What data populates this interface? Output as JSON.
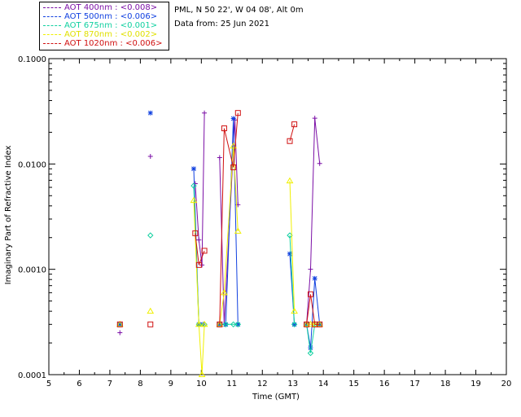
{
  "info": {
    "site": "PML, N 50 22', W 04 08', Alt 0m",
    "date": "Data from: 25 Jun 2021"
  },
  "legend": [
    {
      "label": "AOT  400nm : <0.008>",
      "color": "#7b0fa6"
    },
    {
      "label": "AOT  500nm : <0.006>",
      "color": "#1040e0"
    },
    {
      "label": "AOT  675nm : <0.001>",
      "color": "#10d0a0"
    },
    {
      "label": "AOT  870nm : <0.002>",
      "color": "#f0f000"
    },
    {
      "label": "AOT 1020nm : <0.006>",
      "color": "#d01010"
    }
  ],
  "chart_data": {
    "type": "line",
    "title": "",
    "xlabel": "Time (GMT)",
    "ylabel": "Imaginary Part of Refractive Index",
    "xlim": [
      5,
      20
    ],
    "ylim": [
      0.0001,
      0.1
    ],
    "yscale": "log",
    "x_ticks": [
      "5",
      "6",
      "7",
      "8",
      "9",
      "10",
      "11",
      "12",
      "13",
      "14",
      "15",
      "16",
      "17",
      "18",
      "19",
      "20"
    ],
    "y_ticks": [
      "0.0001",
      "0.0010",
      "0.0100",
      "0.1000"
    ],
    "grid": false,
    "series": [
      {
        "name": "AOT  400nm : <0.008>",
        "color": "#7b0fa6",
        "marker": "plus",
        "segments": [
          [
            [
              7.33,
              0.00025
            ]
          ],
          [
            [
              8.33,
              0.0118
            ]
          ],
          [
            [
              9.8,
              0.0065
            ],
            [
              9.92,
              0.0019
            ],
            [
              10.02,
              0.0011
            ],
            [
              10.1,
              0.0305
            ]
          ],
          [
            [
              10.6,
              0.0115
            ],
            [
              10.75,
              0.0003
            ],
            [
              11.1,
              0.0262
            ],
            [
              11.2,
              0.0041
            ]
          ],
          [
            [
              13.45,
              0.0003
            ],
            [
              13.58,
              0.001
            ],
            [
              13.72,
              0.0272
            ],
            [
              13.88,
              0.0101
            ]
          ]
        ]
      },
      {
        "name": "AOT  500nm : <0.006>",
        "color": "#1040e0",
        "marker": "asterisk",
        "segments": [
          [
            [
              7.33,
              0.0003
            ]
          ],
          [
            [
              8.33,
              0.0305
            ]
          ],
          [
            [
              9.75,
              0.009
            ],
            [
              9.92,
              0.0003
            ],
            [
              10.05,
              0.0003
            ]
          ],
          [
            [
              10.6,
              0.0003
            ],
            [
              10.8,
              0.0003
            ],
            [
              11.05,
              0.027
            ],
            [
              11.2,
              0.0003
            ]
          ],
          [
            [
              12.9,
              0.0014
            ],
            [
              13.05,
              0.0003
            ]
          ],
          [
            [
              13.45,
              0.0003
            ],
            [
              13.58,
              0.00018
            ],
            [
              13.72,
              0.00082
            ],
            [
              13.88,
              0.0003
            ]
          ]
        ]
      },
      {
        "name": "AOT  675nm : <0.001>",
        "color": "#10d0a0",
        "marker": "diamond",
        "segments": [
          [
            [
              7.33,
              0.0003
            ]
          ],
          [
            [
              8.33,
              0.0021
            ]
          ],
          [
            [
              9.75,
              0.0062
            ],
            [
              9.92,
              0.0003
            ],
            [
              10.1,
              0.0003
            ]
          ],
          [
            [
              10.6,
              0.0003
            ],
            [
              10.8,
              0.0003
            ],
            [
              11.05,
              0.0003
            ],
            [
              11.2,
              0.0003
            ]
          ],
          [
            [
              12.9,
              0.0021
            ],
            [
              13.05,
              0.0003
            ]
          ],
          [
            [
              13.45,
              0.0003
            ],
            [
              13.58,
              0.00016
            ],
            [
              13.72,
              0.0003
            ],
            [
              13.88,
              0.0003
            ]
          ]
        ]
      },
      {
        "name": "AOT  870nm : <0.002>",
        "color": "#f0f000",
        "marker": "triangle",
        "segments": [
          [
            [
              7.33,
              0.0003
            ]
          ],
          [
            [
              8.33,
              0.0004
            ]
          ],
          [
            [
              9.75,
              0.0045
            ],
            [
              9.92,
              0.0003
            ],
            [
              10.02,
              0.0001
            ],
            [
              10.1,
              0.0003
            ]
          ],
          [
            [
              10.6,
              0.0003
            ],
            [
              10.75,
              0.0006
            ],
            [
              11.05,
              0.0148
            ],
            [
              11.2,
              0.0023
            ]
          ],
          [
            [
              12.9,
              0.0069
            ],
            [
              13.05,
              0.0004
            ]
          ],
          [
            [
              13.45,
              0.0003
            ],
            [
              13.58,
              0.0003
            ],
            [
              13.72,
              0.0003
            ],
            [
              13.88,
              0.0003
            ]
          ]
        ]
      },
      {
        "name": "AOT 1020nm : <0.006>",
        "color": "#d01010",
        "marker": "square",
        "segments": [
          [
            [
              7.33,
              0.0003
            ]
          ],
          [
            [
              8.33,
              0.0003
            ]
          ],
          [
            [
              9.8,
              0.0022
            ],
            [
              9.92,
              0.0011
            ],
            [
              10.1,
              0.0015
            ]
          ],
          [
            [
              10.6,
              0.0003
            ],
            [
              10.75,
              0.0218
            ],
            [
              11.05,
              0.0093
            ],
            [
              11.2,
              0.0305
            ]
          ],
          [
            [
              12.9,
              0.0165
            ],
            [
              13.05,
              0.0238
            ]
          ],
          [
            [
              13.45,
              0.0003
            ],
            [
              13.58,
              0.00058
            ],
            [
              13.72,
              0.0003
            ],
            [
              13.88,
              0.0003
            ]
          ]
        ]
      }
    ]
  }
}
